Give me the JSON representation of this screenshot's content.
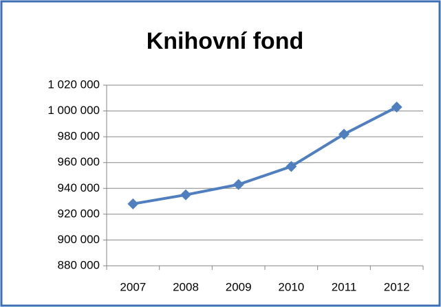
{
  "chart_data": {
    "type": "line",
    "title": "Knihovní fond",
    "categories": [
      "2007",
      "2008",
      "2009",
      "2010",
      "2011",
      "2012"
    ],
    "series": [
      {
        "name": "Knihovní fond",
        "color": "#4f7fbe",
        "values": [
          928000,
          935000,
          943000,
          957000,
          982000,
          1003000
        ]
      }
    ],
    "ylim": [
      880000,
      1020000
    ],
    "yticks": [
      {
        "value": 880000,
        "label": "880 000"
      },
      {
        "value": 900000,
        "label": "900 000"
      },
      {
        "value": 920000,
        "label": "920 000"
      },
      {
        "value": 940000,
        "label": "940 000"
      },
      {
        "value": 960000,
        "label": "960 000"
      },
      {
        "value": 980000,
        "label": "980 000"
      },
      {
        "value": 1000000,
        "label": "1 000 000"
      },
      {
        "value": 1020000,
        "label": "1 020 000"
      }
    ],
    "grid": true,
    "legend": false
  }
}
